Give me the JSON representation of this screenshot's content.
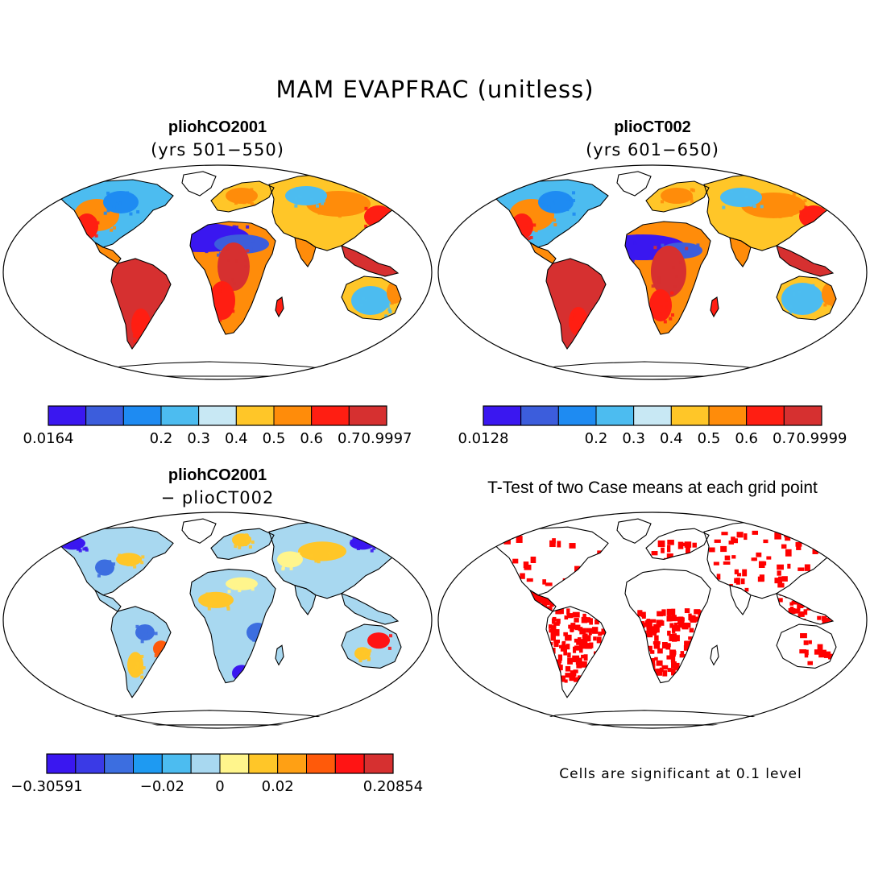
{
  "figure": {
    "title": "MAM EVAPFRAC (unitless)"
  },
  "panels": [
    {
      "title": "pliohCO2001",
      "subtitle": "(yrs 501−550)",
      "colorbar": {
        "colors": [
          "#3a17f0",
          "#3c5ddc",
          "#1e8bf2",
          "#4cbcf0",
          "#c8e8f4",
          "#ffc628",
          "#ff8c0a",
          "#ff1e12",
          "#d63030"
        ],
        "labels": [
          "0.0164",
          "0.2",
          "0.3",
          "0.4",
          "0.5",
          "0.6",
          "0.7",
          "0.9997"
        ]
      }
    },
    {
      "title": "plioCT002",
      "subtitle": "(yrs 601−650)",
      "colorbar": {
        "colors": [
          "#3a17f0",
          "#3c5ddc",
          "#1e8bf2",
          "#4cbcf0",
          "#c8e8f4",
          "#ffc628",
          "#ff8c0a",
          "#ff1e12",
          "#d63030"
        ],
        "labels": [
          "0.0128",
          "0.2",
          "0.3",
          "0.4",
          "0.5",
          "0.6",
          "0.7",
          "0.9999"
        ]
      }
    },
    {
      "title": "pliohCO2001",
      "subtitle": "− plioCT002",
      "colorbar": {
        "colors": [
          "#3a17f0",
          "#3a3ae6",
          "#3c6ee0",
          "#1e9af2",
          "#4cbcf0",
          "#a8d8f0",
          "#fff58c",
          "#ffc628",
          "#ffa014",
          "#ff5a0a",
          "#ff1414",
          "#d63030"
        ],
        "labels": [
          "−0.30591",
          "−0.02",
          "0",
          "0.02",
          "0.20854"
        ]
      }
    },
    {
      "title": "T-Test of two Case means at each grid point",
      "note": "Cells are significant at 0.1 level"
    }
  ]
}
